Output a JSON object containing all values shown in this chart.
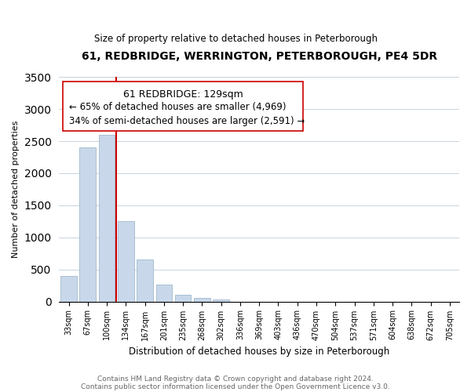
{
  "title": "61, REDBRIDGE, WERRINGTON, PETERBOROUGH, PE4 5DR",
  "subtitle": "Size of property relative to detached houses in Peterborough",
  "xlabel": "Distribution of detached houses by size in Peterborough",
  "ylabel": "Number of detached properties",
  "bar_labels": [
    "33sqm",
    "67sqm",
    "100sqm",
    "134sqm",
    "167sqm",
    "201sqm",
    "235sqm",
    "268sqm",
    "302sqm",
    "336sqm",
    "369sqm",
    "403sqm",
    "436sqm",
    "470sqm",
    "504sqm",
    "537sqm",
    "571sqm",
    "604sqm",
    "638sqm",
    "672sqm",
    "705sqm"
  ],
  "bar_values": [
    400,
    2400,
    2600,
    1250,
    650,
    265,
    110,
    50,
    35,
    0,
    0,
    0,
    0,
    0,
    0,
    0,
    0,
    0,
    0,
    0,
    0
  ],
  "bar_color": "#c8d8ea",
  "bar_edge_color": "#a0b8cc",
  "property_line_color": "#cc0000",
  "property_line_index": 2.5,
  "ylim": [
    0,
    3500
  ],
  "annotation_title": "61 REDBRIDGE: 129sqm",
  "annotation_line1": "← 65% of detached houses are smaller (4,969)",
  "annotation_line2": "34% of semi-detached houses are larger (2,591) →",
  "footer_line1": "Contains HM Land Registry data © Crown copyright and database right 2024.",
  "footer_line2": "Contains public sector information licensed under the Open Government Licence v3.0.",
  "title_fontsize": 10,
  "subtitle_fontsize": 8.5,
  "ylabel_fontsize": 8,
  "xlabel_fontsize": 8.5,
  "tick_fontsize": 7,
  "footer_fontsize": 6.5,
  "annotation_title_fontsize": 9,
  "annotation_body_fontsize": 8.5
}
